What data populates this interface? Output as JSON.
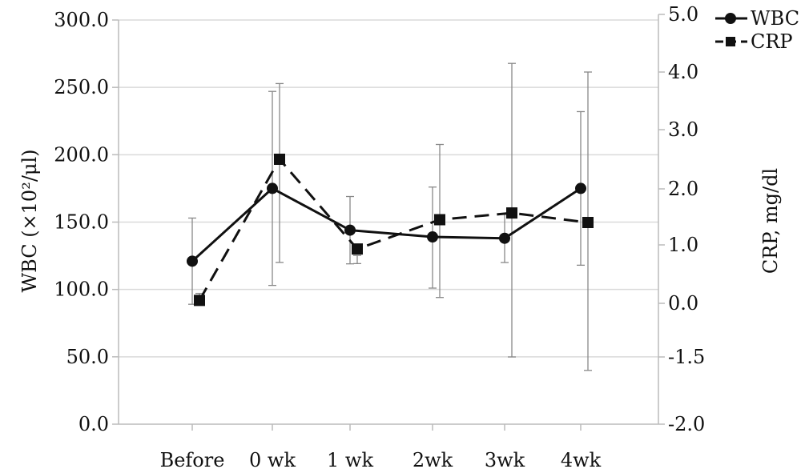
{
  "chart_data": {
    "type": "line",
    "categories": [
      "Before",
      "0 wk",
      "1 wk",
      "2wk",
      "3wk",
      "4wk"
    ],
    "y_left": {
      "label": "WBC (×10²/μl)",
      "ticks": [
        "0.0",
        "50.0",
        "100.0",
        "150.0",
        "200.0",
        "250.0",
        "300.0"
      ],
      "range": [
        0,
        300
      ]
    },
    "y_right": {
      "label": "CRP, mg/dl",
      "ticks": [
        "-2.0",
        "-1.5",
        "0.0",
        "1.0",
        "2.0",
        "3.0",
        "4.0",
        "5.0"
      ]
    },
    "grid": "horizontal",
    "legend_position": "top-right",
    "series": [
      {
        "name": "WBC",
        "marker": "circle",
        "style": "solid",
        "axis": "left",
        "values": [
          121,
          175,
          144,
          139,
          138,
          175
        ],
        "error_low": [
          89,
          103,
          119,
          101,
          120,
          118
        ],
        "error_high": [
          153,
          247,
          169,
          176,
          156,
          232
        ]
      },
      {
        "name": "CRP",
        "marker": "square",
        "style": "dashed",
        "axis": "right",
        "values": [
          0.05,
          2.5,
          0.93,
          1.45,
          1.57,
          1.4
        ],
        "error_low": [
          -0.05,
          0.7,
          0.68,
          0.1,
          -1.5,
          -1.6
        ],
        "error_high": [
          0.17,
          3.8,
          0.82,
          2.75,
          4.15,
          4.0
        ]
      }
    ]
  }
}
